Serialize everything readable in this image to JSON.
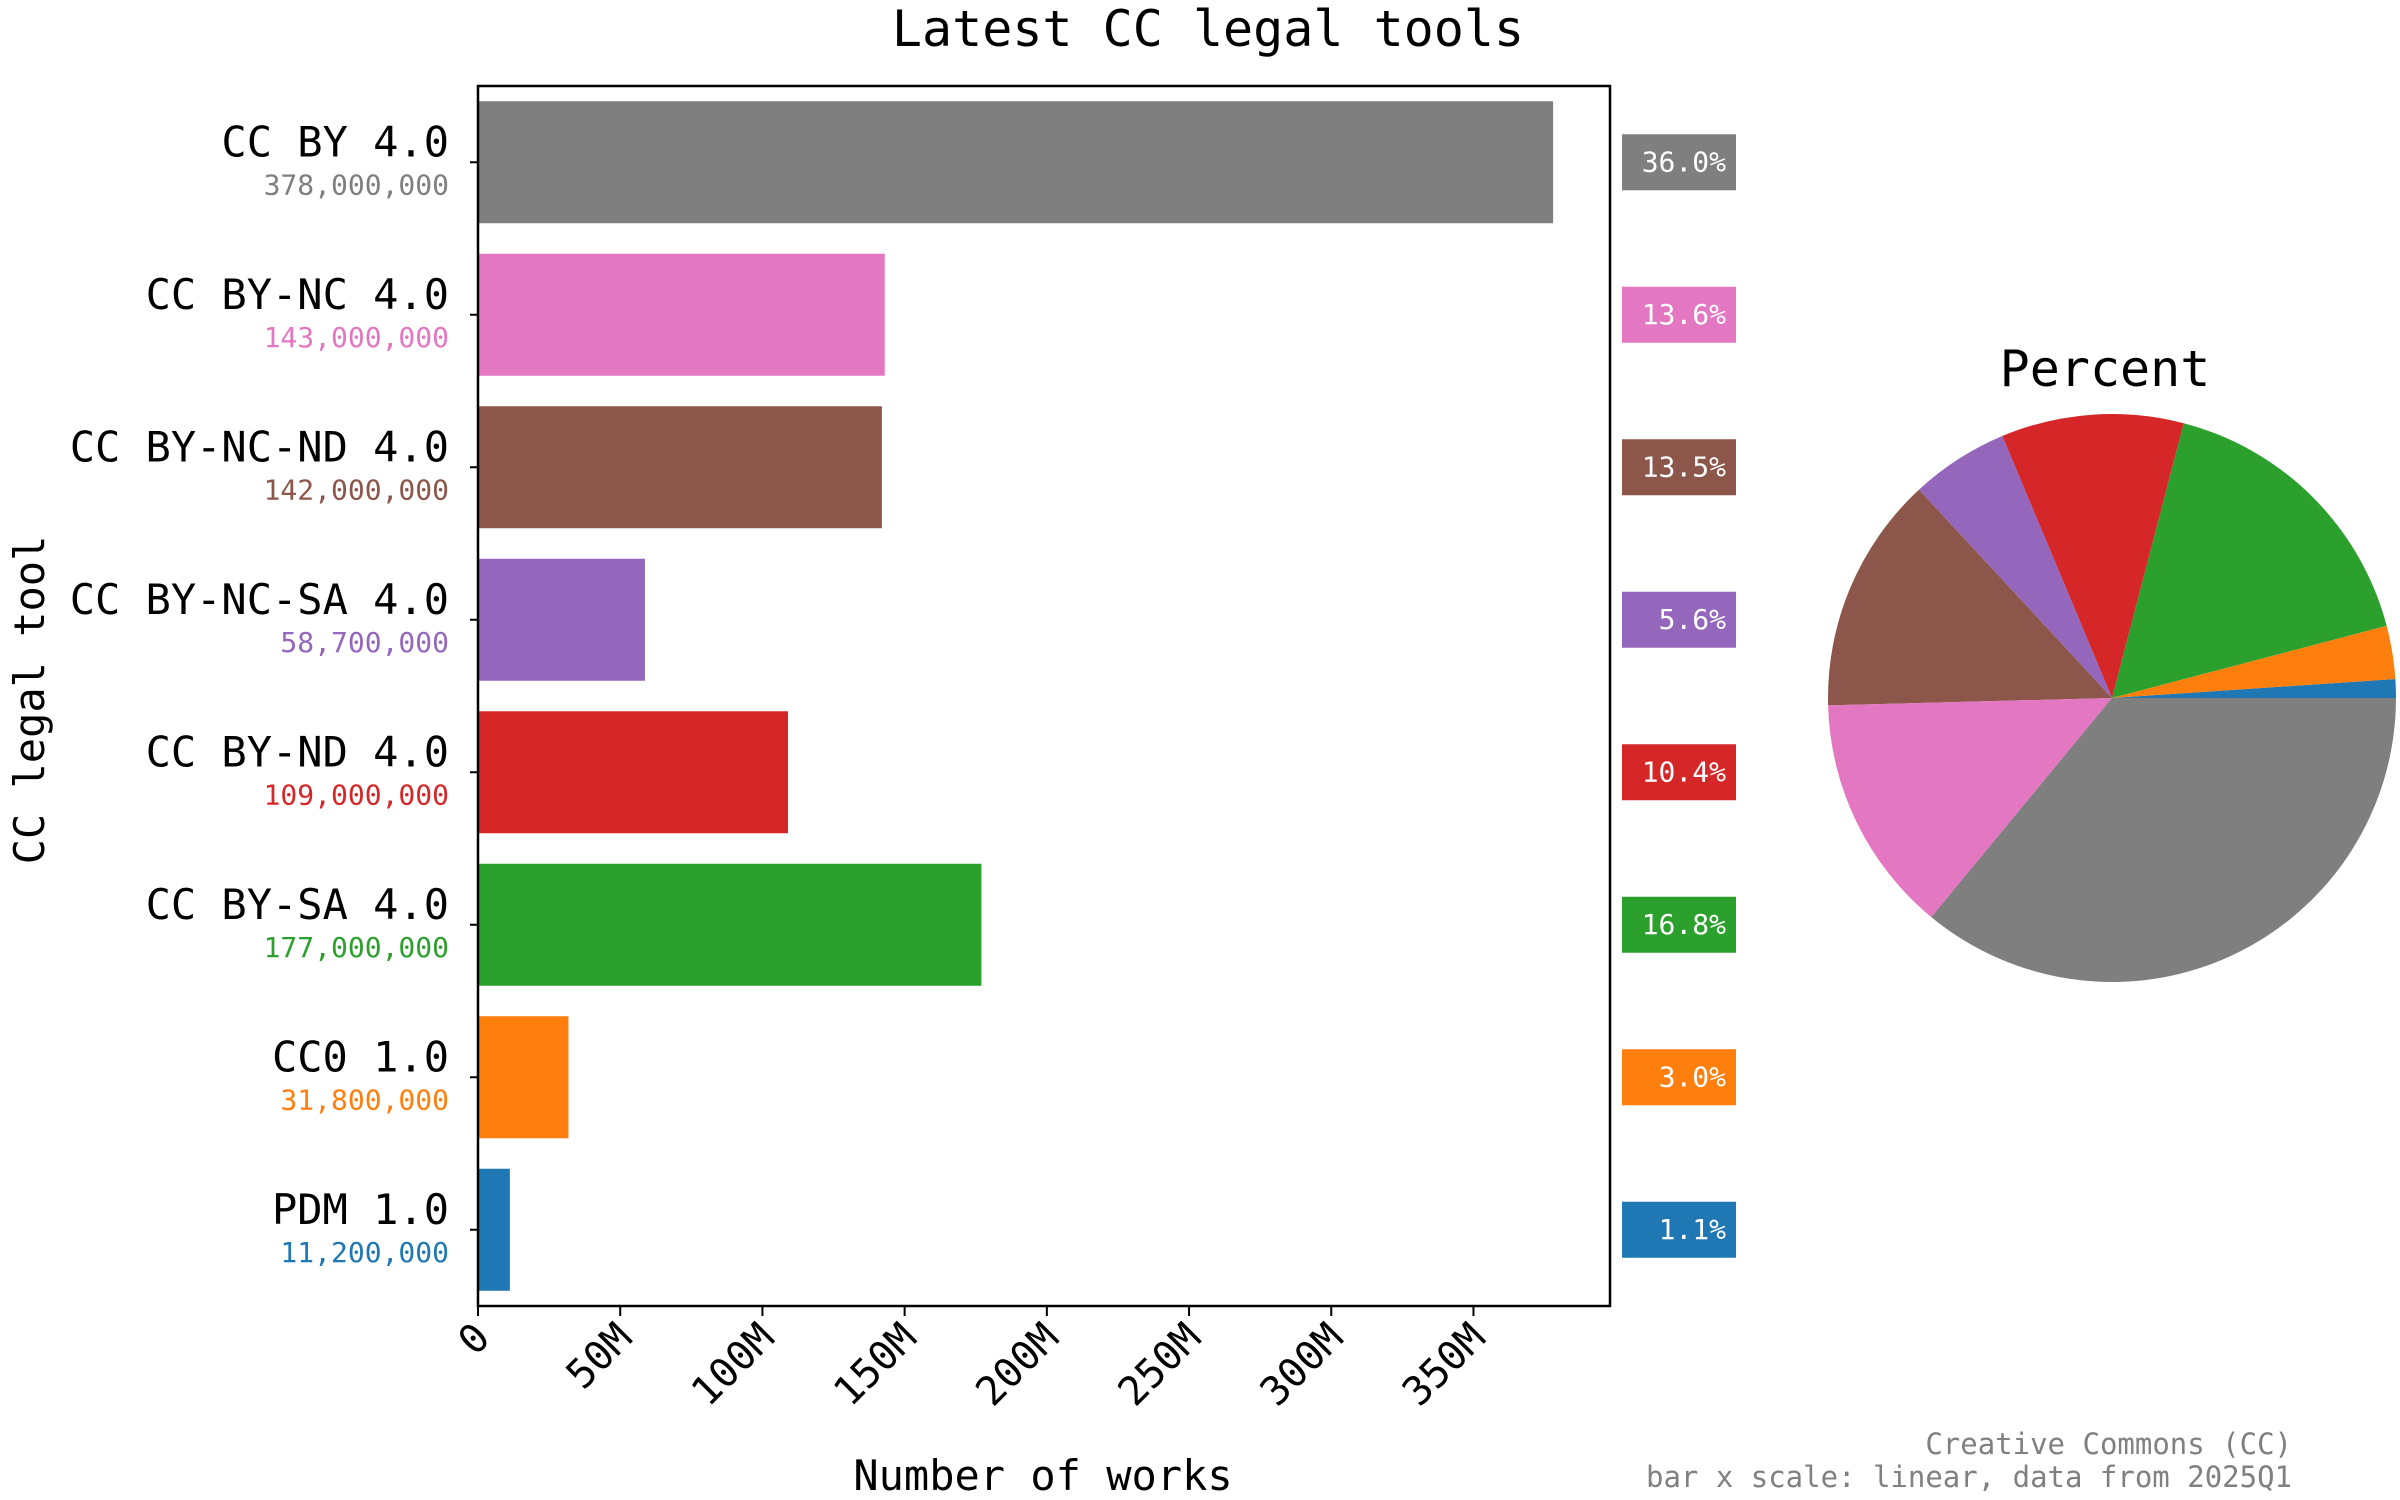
{
  "chart_data": {
    "type": "bar",
    "orientation": "horizontal",
    "title": "Latest CC legal tools",
    "xlabel": "Number of works",
    "ylabel": "CC legal tool",
    "xlim": [
      0,
      398000000
    ],
    "x_scale": "linear",
    "x_ticks": [
      {
        "value": 0,
        "label": "0"
      },
      {
        "value": 50000000,
        "label": "50M"
      },
      {
        "value": 100000000,
        "label": "100M"
      },
      {
        "value": 150000000,
        "label": "150M"
      },
      {
        "value": 200000000,
        "label": "200M"
      },
      {
        "value": 250000000,
        "label": "250M"
      },
      {
        "value": 300000000,
        "label": "300M"
      },
      {
        "value": 350000000,
        "label": "350M"
      }
    ],
    "grid": false,
    "categories": [
      {
        "label": "CC BY 4.0",
        "value": 378000000,
        "value_label": "378,000,000",
        "percent": 36.0,
        "percent_label": "36.0%",
        "color": "#7f7f7f"
      },
      {
        "label": "CC BY-NC 4.0",
        "value": 143000000,
        "value_label": "143,000,000",
        "percent": 13.6,
        "percent_label": "13.6%",
        "color": "#e377c2"
      },
      {
        "label": "CC BY-NC-ND 4.0",
        "value": 142000000,
        "value_label": "142,000,000",
        "percent": 13.5,
        "percent_label": "13.5%",
        "color": "#8c564b"
      },
      {
        "label": "CC BY-NC-SA 4.0",
        "value": 58700000,
        "value_label": "58,700,000",
        "percent": 5.6,
        "percent_label": "5.6%",
        "color": "#9467bd"
      },
      {
        "label": "CC BY-ND 4.0",
        "value": 109000000,
        "value_label": "109,000,000",
        "percent": 10.4,
        "percent_label": "10.4%",
        "color": "#d62728"
      },
      {
        "label": "CC BY-SA 4.0",
        "value": 177000000,
        "value_label": "177,000,000",
        "percent": 16.8,
        "percent_label": "16.8%",
        "color": "#2ca02c"
      },
      {
        "label": "CC0 1.0",
        "value": 31800000,
        "value_label": "31,800,000",
        "percent": 3.0,
        "percent_label": "3.0%",
        "color": "#ff7f0e"
      },
      {
        "label": "PDM 1.0",
        "value": 11200000,
        "value_label": "11,200,000",
        "percent": 1.1,
        "percent_label": "1.1%",
        "color": "#1f77b4"
      }
    ],
    "pie": {
      "title": "Percent",
      "type": "pie"
    }
  },
  "footer": {
    "line1": "Creative Commons (CC)",
    "line2": "bar x scale: linear, data from 2025Q1"
  }
}
